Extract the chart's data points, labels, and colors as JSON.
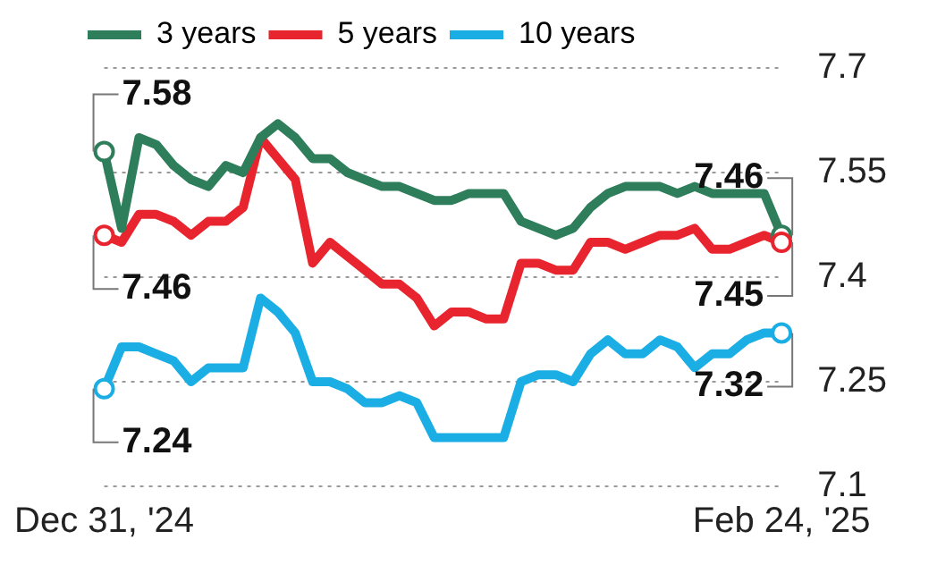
{
  "chart_data": {
    "type": "line",
    "categories": [
      "Dec 31, '24",
      null,
      null,
      null,
      null,
      null,
      null,
      null,
      null,
      null,
      null,
      null,
      null,
      null,
      null,
      null,
      null,
      null,
      null,
      null,
      null,
      null,
      null,
      null,
      null,
      null,
      null,
      null,
      null,
      null,
      null,
      null,
      null,
      null,
      null,
      null,
      null,
      null,
      null,
      "Feb 24, '25"
    ],
    "series": [
      {
        "name": "3 years",
        "color": "#2e7d5b",
        "values": [
          7.58,
          7.47,
          7.6,
          7.59,
          7.56,
          7.54,
          7.53,
          7.56,
          7.55,
          7.6,
          7.62,
          7.6,
          7.57,
          7.57,
          7.55,
          7.54,
          7.53,
          7.53,
          7.52,
          7.51,
          7.51,
          7.52,
          7.52,
          7.52,
          7.48,
          7.47,
          7.46,
          7.47,
          7.5,
          7.52,
          7.53,
          7.53,
          7.53,
          7.52,
          7.53,
          7.52,
          7.52,
          7.52,
          7.52,
          7.46
        ],
        "value_labels": [
          "7.58",
          null,
          null,
          null,
          null,
          null,
          null,
          null,
          null,
          null,
          null,
          null,
          null,
          null,
          null,
          null,
          null,
          null,
          null,
          null,
          null,
          null,
          null,
          null,
          null,
          null,
          null,
          null,
          null,
          null,
          null,
          null,
          null,
          null,
          null,
          null,
          null,
          null,
          null,
          "7.46"
        ]
      },
      {
        "name": "5 years",
        "color": "#e8252e",
        "values": [
          7.46,
          7.45,
          7.49,
          7.49,
          7.48,
          7.46,
          7.48,
          7.48,
          7.5,
          7.6,
          7.57,
          7.54,
          7.42,
          7.45,
          7.43,
          7.41,
          7.39,
          7.39,
          7.37,
          7.33,
          7.35,
          7.35,
          7.34,
          7.34,
          7.42,
          7.42,
          7.41,
          7.41,
          7.45,
          7.45,
          7.44,
          7.45,
          7.46,
          7.46,
          7.47,
          7.44,
          7.44,
          7.45,
          7.46,
          7.45
        ],
        "value_labels": [
          "7.46",
          null,
          null,
          null,
          null,
          null,
          null,
          null,
          null,
          null,
          null,
          null,
          null,
          null,
          null,
          null,
          null,
          null,
          null,
          null,
          null,
          null,
          null,
          null,
          null,
          null,
          null,
          null,
          null,
          null,
          null,
          null,
          null,
          null,
          null,
          null,
          null,
          null,
          null,
          "7.45"
        ]
      },
      {
        "name": "10 years",
        "color": "#1aaee5",
        "values": [
          7.24,
          7.3,
          7.3,
          7.29,
          7.28,
          7.25,
          7.27,
          7.27,
          7.27,
          7.37,
          7.35,
          7.32,
          7.25,
          7.25,
          7.24,
          7.22,
          7.22,
          7.23,
          7.22,
          7.17,
          7.17,
          7.17,
          7.17,
          7.17,
          7.25,
          7.26,
          7.26,
          7.25,
          7.29,
          7.31,
          7.29,
          7.29,
          7.31,
          7.3,
          7.27,
          7.29,
          7.29,
          7.31,
          7.32,
          7.32
        ],
        "value_labels": [
          "7.24",
          null,
          null,
          null,
          null,
          null,
          null,
          null,
          null,
          null,
          null,
          null,
          null,
          null,
          null,
          null,
          null,
          null,
          null,
          null,
          null,
          null,
          null,
          null,
          null,
          null,
          null,
          null,
          null,
          null,
          null,
          null,
          null,
          null,
          null,
          null,
          null,
          null,
          null,
          "7.32"
        ]
      }
    ],
    "ylim": [
      7.1,
      7.7
    ],
    "yticks": [
      7.1,
      7.25,
      7.4,
      7.55,
      7.7
    ],
    "grid": "y",
    "legend": "top left",
    "line_style": "solid"
  }
}
